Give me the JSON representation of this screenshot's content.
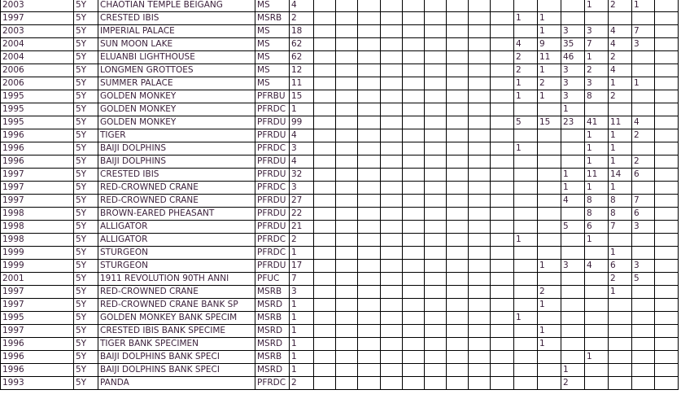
{
  "rows": [
    {
      "year": "2003",
      "denom": "5Y",
      "name": "CHAOTIAN TEMPLE BEIGANG",
      "type": "MS",
      "count": "4",
      "grades": [
        "",
        "",
        "",
        "1",
        "2",
        "1"
      ]
    },
    {
      "year": "1997",
      "denom": "5Y",
      "name": "CRESTED IBIS",
      "type": "MSRB",
      "count": "2",
      "grades": [
        "1",
        "1",
        "",
        "",
        "",
        ""
      ]
    },
    {
      "year": "2003",
      "denom": "5Y",
      "name": "IMPERIAL PALACE",
      "type": "MS",
      "count": "18",
      "grades": [
        "",
        "1",
        "3",
        "3",
        "4",
        "7"
      ]
    },
    {
      "year": "2004",
      "denom": "5Y",
      "name": "SUN MOON LAKE",
      "type": "MS",
      "count": "62",
      "grades": [
        "4",
        "9",
        "35",
        "7",
        "4",
        "3"
      ]
    },
    {
      "year": "2004",
      "denom": "5Y",
      "name": "ELUANBI LIGHTHOUSE",
      "type": "MS",
      "count": "62",
      "grades": [
        "2",
        "11",
        "46",
        "1",
        "2",
        ""
      ]
    },
    {
      "year": "2006",
      "denom": "5Y",
      "name": "LONGMEN GROTTOES",
      "type": "MS",
      "count": "12",
      "grades": [
        "2",
        "1",
        "3",
        "2",
        "4",
        ""
      ]
    },
    {
      "year": "2006",
      "denom": "5Y",
      "name": "SUMMER PALACE",
      "type": "MS",
      "count": "11",
      "grades": [
        "1",
        "2",
        "3",
        "3",
        "1",
        "1"
      ]
    },
    {
      "year": "1995",
      "denom": "5Y",
      "name": "GOLDEN MONKEY",
      "type": "PFRBU",
      "count": "15",
      "grades": [
        "1",
        "1",
        "3",
        "8",
        "2",
        ""
      ]
    },
    {
      "year": "1995",
      "denom": "5Y",
      "name": "GOLDEN MONKEY",
      "type": "PFRDC",
      "count": "1",
      "grades": [
        "",
        "",
        "1",
        "",
        "",
        ""
      ]
    },
    {
      "year": "1995",
      "denom": "5Y",
      "name": "GOLDEN MONKEY",
      "type": "PFRDU",
      "count": "99",
      "grades": [
        "5",
        "15",
        "23",
        "41",
        "11",
        "4"
      ]
    },
    {
      "year": "1996",
      "denom": "5Y",
      "name": "TIGER",
      "type": "PFRDU",
      "count": "4",
      "grades": [
        "",
        "",
        "",
        "1",
        "1",
        "2"
      ]
    },
    {
      "year": "1996",
      "denom": "5Y",
      "name": "BAIJI DOLPHINS",
      "type": "PFRDC",
      "count": "3",
      "grades": [
        "1",
        "",
        "",
        "1",
        "1",
        ""
      ]
    },
    {
      "year": "1996",
      "denom": "5Y",
      "name": "BAIJI DOLPHINS",
      "type": "PFRDU",
      "count": "4",
      "grades": [
        "",
        "",
        "",
        "1",
        "1",
        "2"
      ]
    },
    {
      "year": "1997",
      "denom": "5Y",
      "name": "CRESTED IBIS",
      "type": "PFRDU",
      "count": "32",
      "grades": [
        "",
        "",
        "1",
        "11",
        "14",
        "6"
      ]
    },
    {
      "year": "1997",
      "denom": "5Y",
      "name": "RED-CROWNED CRANE",
      "type": "PFRDC",
      "count": "3",
      "grades": [
        "",
        "",
        "1",
        "1",
        "1",
        ""
      ]
    },
    {
      "year": "1997",
      "denom": "5Y",
      "name": "RED-CROWNED CRANE",
      "type": "PFRDU",
      "count": "27",
      "grades": [
        "",
        "",
        "4",
        "8",
        "8",
        "7"
      ]
    },
    {
      "year": "1998",
      "denom": "5Y",
      "name": "BROWN-EARED PHEASANT",
      "type": "PFRDU",
      "count": "22",
      "grades": [
        "",
        "",
        "",
        "8",
        "8",
        "6"
      ]
    },
    {
      "year": "1998",
      "denom": "5Y",
      "name": "ALLIGATOR",
      "type": "PFRDU",
      "count": "21",
      "grades": [
        "",
        "",
        "5",
        "6",
        "7",
        "3"
      ]
    },
    {
      "year": "1998",
      "denom": "5Y",
      "name": "ALLIGATOR",
      "type": "PFRDC",
      "count": "2",
      "grades": [
        "1",
        "",
        "",
        "1",
        "",
        ""
      ]
    },
    {
      "year": "1999",
      "denom": "5Y",
      "name": "STURGEON",
      "type": "PFRDC",
      "count": "1",
      "grades": [
        "",
        "",
        "",
        "",
        "1",
        ""
      ]
    },
    {
      "year": "1999",
      "denom": "5Y",
      "name": "STURGEON",
      "type": "PFRDU",
      "count": "17",
      "grades": [
        "",
        "1",
        "3",
        "4",
        "6",
        "3"
      ]
    },
    {
      "year": "2001",
      "denom": "5Y",
      "name": "1911 REVOLUTION 90TH ANNI",
      "type": "PFUC",
      "count": "7",
      "grades": [
        "",
        "",
        "",
        "",
        "2",
        "5"
      ]
    },
    {
      "year": "1997",
      "denom": "5Y",
      "name": "RED-CROWNED CRANE",
      "type": "MSRB",
      "count": "3",
      "grades": [
        "",
        "2",
        "",
        "",
        "1",
        ""
      ]
    },
    {
      "year": "1997",
      "denom": "5Y",
      "name": "RED-CROWNED CRANE BANK SP",
      "type": "MSRD",
      "count": "1",
      "grades": [
        "",
        "1",
        "",
        "",
        "",
        ""
      ]
    },
    {
      "year": "1995",
      "denom": "5Y",
      "name": "GOLDEN MONKEY BANK SPECIM",
      "type": "MSRB",
      "count": "1",
      "grades": [
        "1",
        "",
        "",
        "",
        "",
        ""
      ]
    },
    {
      "year": "1997",
      "denom": "5Y",
      "name": "CRESTED IBIS BANK SPECIME",
      "type": "MSRD",
      "count": "1",
      "grades": [
        "",
        "1",
        "",
        "",
        "",
        ""
      ]
    },
    {
      "year": "1996",
      "denom": "5Y",
      "name": "TIGER BANK SPECIMEN",
      "type": "MSRD",
      "count": "1",
      "grades": [
        "",
        "1",
        "",
        "",
        "",
        ""
      ]
    },
    {
      "year": "1996",
      "denom": "5Y",
      "name": "BAIJI DOLPHINS BANK SPECI",
      "type": "MSRB",
      "count": "1",
      "grades": [
        "",
        "",
        "",
        "1",
        "",
        ""
      ]
    },
    {
      "year": "1996",
      "denom": "5Y",
      "name": "BAIJI DOLPHINS BANK SPECI",
      "type": "MSRD",
      "count": "1",
      "grades": [
        "",
        "",
        "1",
        "",
        "",
        ""
      ]
    },
    {
      "year": "1993",
      "denom": "5Y",
      "name": "PANDA",
      "type": "PFRDC",
      "count": "2",
      "grades": [
        "",
        "",
        "2",
        "",
        "",
        ""
      ]
    }
  ]
}
